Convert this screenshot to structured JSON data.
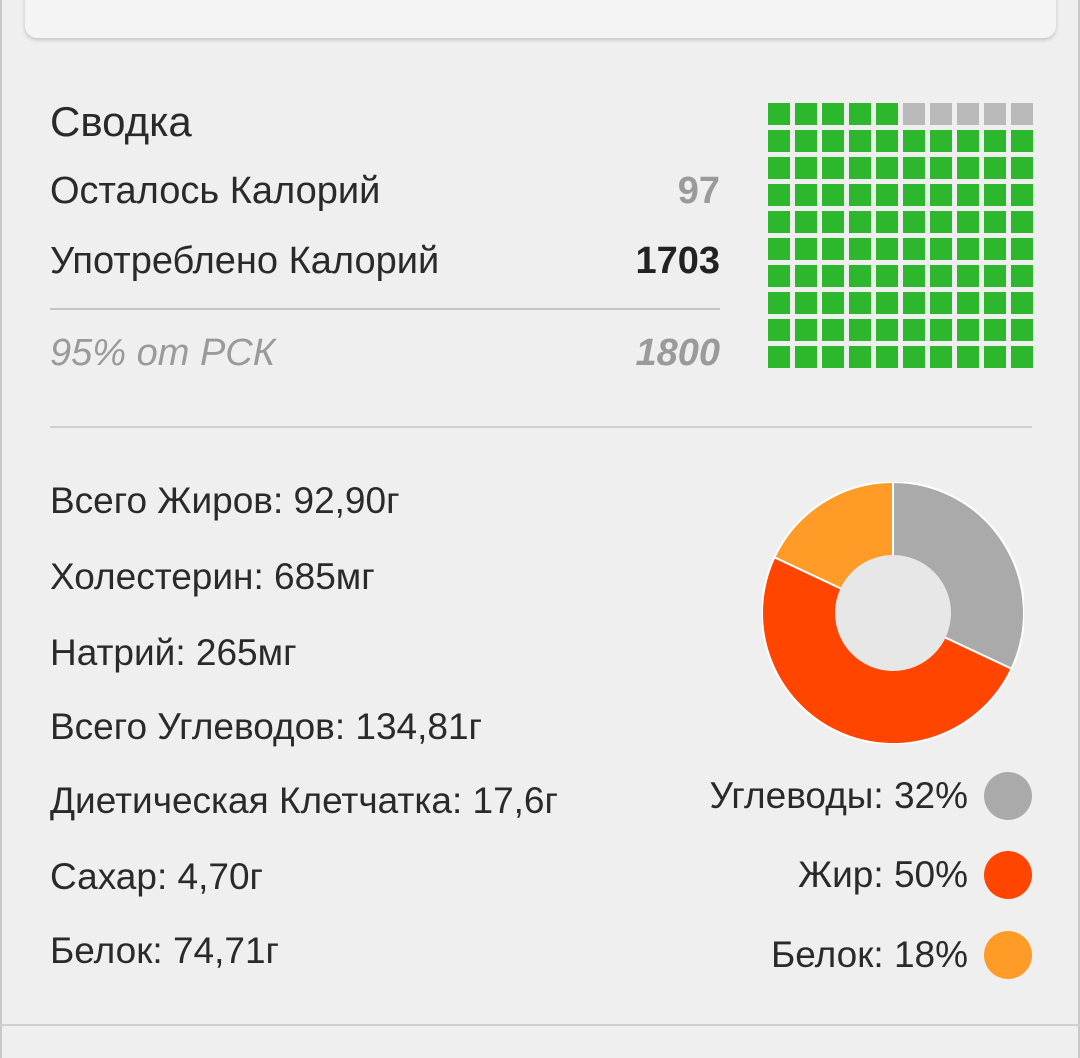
{
  "summary": {
    "title": "Сводка",
    "remaining_label": "Осталось Калорий",
    "remaining_value": "97",
    "consumed_label": "Употреблено Калорий",
    "consumed_value": "1703",
    "rdi_label": "95% от РСК",
    "rdi_value": "1800",
    "progress_fraction": 0.95
  },
  "nutrients": [
    "Всего Жиров: 92,90г",
    "Холестерин: 685мг",
    "Натрий: 265мг",
    "Всего Углеводов: 134,81г",
    "Диетическая Клетчатка: 17,6г",
    "Сахар: 4,70г",
    "Белок: 74,71г"
  ],
  "chart_data": {
    "type": "pie",
    "categories": [
      "Углеводы",
      "Жир",
      "Белок"
    ],
    "values": [
      32,
      50,
      18
    ],
    "colors": [
      "#aaaaaa",
      "#ff4500",
      "#ff9b26"
    ],
    "legend_labels": [
      "Углеводы: 32%",
      "Жир: 50%",
      "Белок: 18%"
    ]
  },
  "colors": {
    "progress_filled": "#2db72d",
    "progress_empty": "#b9b9b9",
    "background": "#efefef"
  }
}
